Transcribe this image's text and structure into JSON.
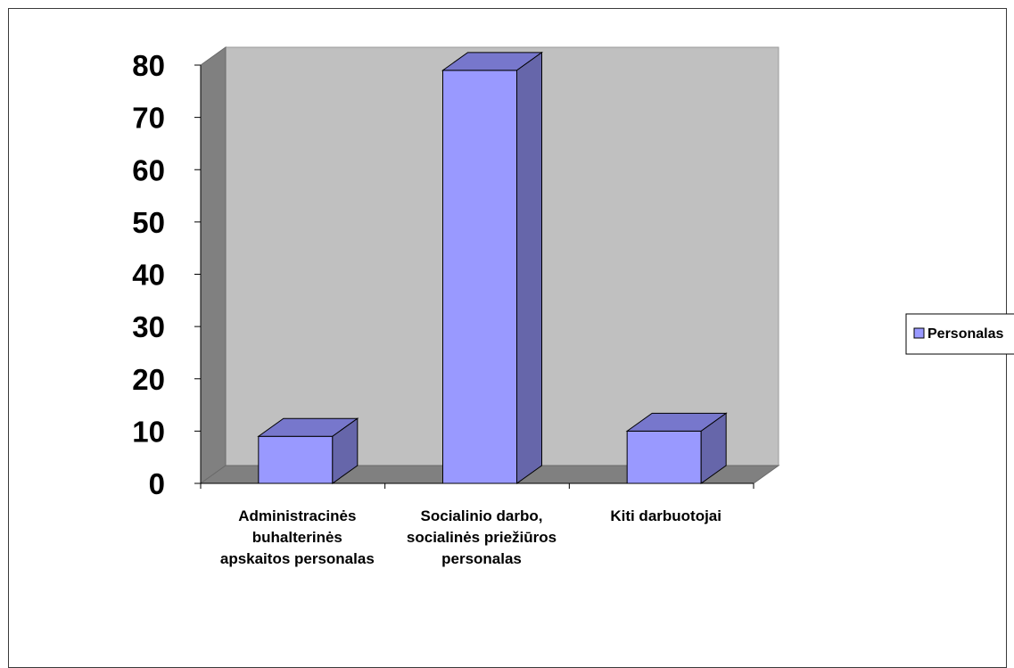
{
  "chart_data": {
    "type": "bar",
    "title": "",
    "xlabel": "",
    "ylabel": "",
    "categories": [
      [
        "Administracinės",
        "buhalterinės",
        "apskaitos personalas"
      ],
      [
        "Socialinio darbo,",
        "socialinės priežiūros",
        "personalas"
      ],
      [
        "Kiti darbuotojai"
      ]
    ],
    "series": [
      {
        "name": "Personalas",
        "values": [
          9,
          79,
          10
        ]
      }
    ],
    "y_ticks": [
      "0",
      "10",
      "20",
      "30",
      "40",
      "50",
      "60",
      "70",
      "80"
    ],
    "ylim": [
      0,
      80
    ],
    "legend_position": "right",
    "three_d": true,
    "colors": {
      "bar_front": "#9999ff",
      "bar_side": "#6666aa",
      "bar_top": "#7777cc",
      "wall": "#c0c0c0",
      "wall_left": "#808080",
      "floor": "#808080",
      "bar_stroke": "#000000"
    }
  }
}
